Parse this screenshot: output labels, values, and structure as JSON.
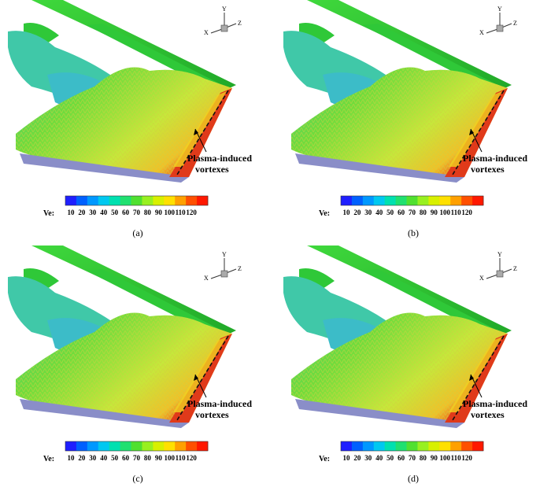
{
  "annotation": {
    "line1": "Plasma-induced",
    "line2": "vortexes"
  },
  "colorbar": {
    "label": "Ve:",
    "ticks": [
      "10",
      "20",
      "30",
      "40",
      "50",
      "60",
      "70",
      "80",
      "90",
      "100",
      "110",
      "120"
    ],
    "colors": [
      "#1f1fff",
      "#0060ff",
      "#0098ff",
      "#00c8f0",
      "#00e0b0",
      "#20e070",
      "#50e030",
      "#98f020",
      "#d8f000",
      "#ffe000",
      "#ffa000",
      "#ff5000",
      "#ff1800"
    ]
  },
  "axes": {
    "x": "X",
    "y": "Y",
    "z": "Z"
  },
  "panels": [
    {
      "label": "(a)"
    },
    {
      "label": "(b)"
    },
    {
      "label": "(c)"
    },
    {
      "label": "(d)"
    }
  ]
}
